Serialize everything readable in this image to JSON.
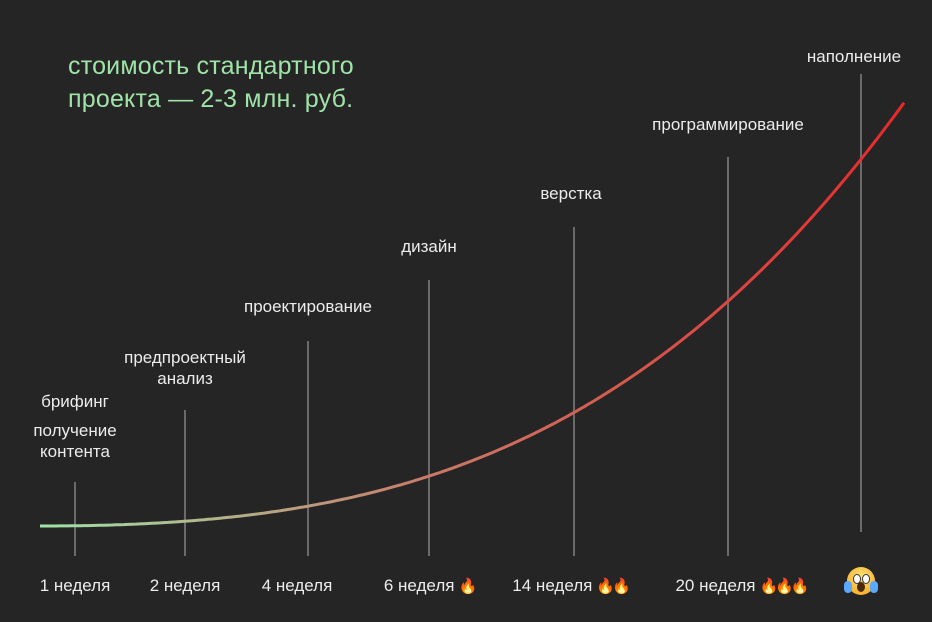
{
  "title_lines": [
    "стоимость стандартного",
    "проекта — 2-3 млн. руб."
  ],
  "colors": {
    "background": "#252525",
    "title": "#9fe3a8",
    "text": "#ececec",
    "vline": "#6a6a6a",
    "curve_start": "#9fe3a8",
    "curve_mid": "#c97a68",
    "curve_end": "#e8282b"
  },
  "chart_data": {
    "type": "line",
    "x_ticks": [
      {
        "label": "1 неделя",
        "fire": ""
      },
      {
        "label": "2 неделя",
        "fire": ""
      },
      {
        "label": "4 неделя",
        "fire": ""
      },
      {
        "label": "6 неделя",
        "fire": "🔥"
      },
      {
        "label": "14 неделя",
        "fire": "🔥🔥"
      },
      {
        "label": "20 неделя",
        "fire": "🔥🔥🔥"
      },
      {
        "label": "",
        "icon": "screaming-face-icon"
      }
    ],
    "stages": [
      {
        "lines": [
          "получение",
          "контента"
        ]
      },
      {
        "lines": [
          "брифинг"
        ]
      },
      {
        "lines": [
          "предпроектный",
          "анализ"
        ]
      },
      {
        "lines": [
          "проектирование"
        ]
      },
      {
        "lines": [
          "дизайн"
        ]
      },
      {
        "lines": [
          "верстка"
        ]
      },
      {
        "lines": [
          "программирование"
        ]
      },
      {
        "lines": [
          "наполнение"
        ]
      }
    ],
    "series": [
      {
        "values": [
          0.08,
          0.17,
          0.3,
          0.41,
          0.55,
          0.71,
          0.88,
          1.0
        ]
      }
    ],
    "grid": false,
    "legend": "none"
  }
}
